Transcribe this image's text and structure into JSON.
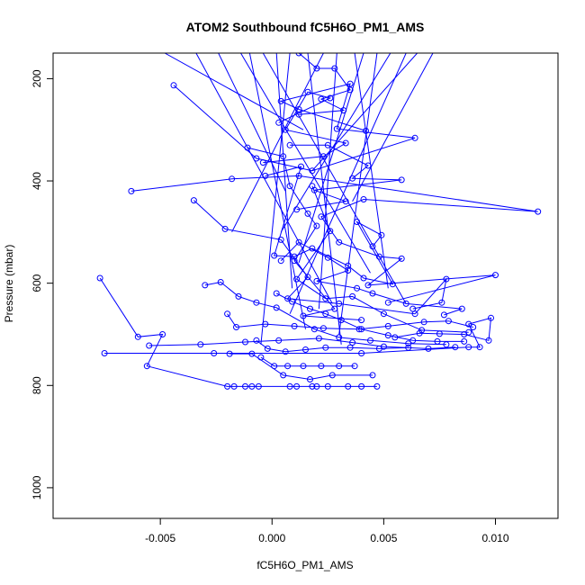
{
  "chart_data": {
    "type": "line",
    "title": "ATOM2 Southbound fC5H6O_PM1_AMS",
    "xlabel": "fC5H6O_PM1_AMS",
    "ylabel": "Pressure (mbar)",
    "xlim": [
      -0.0098,
      0.0128
    ],
    "ylim": [
      1060,
      150
    ],
    "y_reversed": true,
    "x_ticks": [
      -0.005,
      0.0,
      0.005,
      0.01
    ],
    "x_tick_labels": [
      "-0.005",
      "0.000",
      "0.005",
      "0.010"
    ],
    "y_ticks": [
      200,
      400,
      600,
      800,
      1000
    ],
    "y_tick_labels": [
      "200",
      "400",
      "600",
      "800",
      "1000"
    ],
    "color": "#0000ff",
    "marker": "open-circle",
    "series": [
      {
        "values": [
          {
            "x": -0.0077,
            "y": 590
          },
          {
            "x": -0.006,
            "y": 705
          },
          {
            "x": -0.0049,
            "y": 700
          },
          {
            "x": -0.0056,
            "y": 762
          },
          {
            "x": -0.002,
            "y": 802
          },
          {
            "x": -0.0017,
            "y": 802
          },
          {
            "x": -0.0012,
            "y": 802
          },
          {
            "x": -0.0009,
            "y": 802
          },
          {
            "x": -0.0006,
            "y": 802
          },
          {
            "x": 0.0008,
            "y": 802
          },
          {
            "x": 0.0011,
            "y": 802
          },
          {
            "x": 0.0018,
            "y": 802
          },
          {
            "x": 0.002,
            "y": 802
          },
          {
            "x": 0.0025,
            "y": 802
          },
          {
            "x": 0.0034,
            "y": 802
          },
          {
            "x": 0.004,
            "y": 802
          },
          {
            "x": 0.0047,
            "y": 802
          }
        ]
      },
      {
        "values": [
          {
            "x": -0.0075,
            "y": 737
          },
          {
            "x": -0.0026,
            "y": 737
          },
          {
            "x": 0.004,
            "y": 737
          },
          {
            "x": 0.0088,
            "y": 725
          },
          {
            "x": 0.0093,
            "y": 725
          },
          {
            "x": 0.0088,
            "y": 680
          },
          {
            "x": 0.0098,
            "y": 668
          },
          {
            "x": 0.0097,
            "y": 712
          },
          {
            "x": 0.0086,
            "y": 700
          },
          {
            "x": 0.0075,
            "y": 699
          },
          {
            "x": 0.0066,
            "y": 698
          },
          {
            "x": 0.0055,
            "y": 706
          }
        ]
      },
      {
        "values": [
          {
            "x": -0.0063,
            "y": 420
          },
          {
            "x": -0.0018,
            "y": 396
          },
          {
            "x": 0.0012,
            "y": 390
          },
          {
            "x": 0.0119,
            "y": 460
          },
          {
            "x": 0.0041,
            "y": 436
          },
          {
            "x": 0.0022,
            "y": 470
          },
          {
            "x": 0.003,
            "y": 520
          },
          {
            "x": 0.0048,
            "y": 548
          },
          {
            "x": 0.0058,
            "y": 552
          },
          {
            "x": 0.0043,
            "y": 604
          },
          {
            "x": 0.01,
            "y": 584
          },
          {
            "x": 0.0052,
            "y": 638
          }
        ]
      },
      {
        "values": [
          {
            "x": -0.0035,
            "y": 438
          },
          {
            "x": -0.0021,
            "y": 494
          },
          {
            "x": 0.0004,
            "y": 515
          },
          {
            "x": 0.0016,
            "y": 588
          },
          {
            "x": 0.0007,
            "y": 630
          },
          {
            "x": 0.003,
            "y": 640
          },
          {
            "x": 0.0064,
            "y": 660
          },
          {
            "x": 0.0078,
            "y": 592
          },
          {
            "x": 0.0076,
            "y": 638
          },
          {
            "x": 0.0063,
            "y": 650
          }
        ]
      },
      {
        "values": [
          {
            "x": -0.0044,
            "y": 213
          },
          {
            "x": -0.0007,
            "y": 356
          },
          {
            "x": 0.0018,
            "y": 380
          },
          {
            "x": 0.0064,
            "y": 316
          },
          {
            "x": 0.0029,
            "y": 298
          },
          {
            "x": 0.0035,
            "y": 210
          },
          {
            "x": 0.0004,
            "y": 244
          },
          {
            "x": 0.0012,
            "y": 260
          },
          {
            "x": 0.0042,
            "y": 302
          }
        ]
      },
      {
        "values": [
          {
            "x": -0.003,
            "y": 604
          },
          {
            "x": -0.0023,
            "y": 598
          },
          {
            "x": -0.0015,
            "y": 626
          },
          {
            "x": -0.0007,
            "y": 638
          },
          {
            "x": 0.0002,
            "y": 648
          },
          {
            "x": 0.0019,
            "y": 690
          },
          {
            "x": 0.003,
            "y": 706
          },
          {
            "x": 0.0044,
            "y": 712
          },
          {
            "x": 0.0061,
            "y": 718
          },
          {
            "x": 0.0078,
            "y": 720
          }
        ]
      },
      {
        "values": [
          {
            "x": -0.0055,
            "y": 722
          },
          {
            "x": -0.0032,
            "y": 720
          },
          {
            "x": -0.0012,
            "y": 715
          },
          {
            "x": 0.0003,
            "y": 712
          },
          {
            "x": 0.0021,
            "y": 708
          },
          {
            "x": 0.0036,
            "y": 716
          },
          {
            "x": 0.005,
            "y": 724
          },
          {
            "x": 0.007,
            "y": 728
          },
          {
            "x": 0.0082,
            "y": 725
          }
        ]
      },
      {
        "values": [
          {
            "x": -0.002,
            "y": 660
          },
          {
            "x": -0.0016,
            "y": 686
          },
          {
            "x": -0.0003,
            "y": 680
          },
          {
            "x": 0.001,
            "y": 684
          },
          {
            "x": 0.0023,
            "y": 688
          },
          {
            "x": 0.0039,
            "y": 690
          },
          {
            "x": 0.0052,
            "y": 684
          },
          {
            "x": 0.0068,
            "y": 676
          },
          {
            "x": 0.0079,
            "y": 674
          },
          {
            "x": 0.009,
            "y": 686
          }
        ]
      },
      {
        "values": [
          {
            "x": -0.0005,
            "y": 745
          },
          {
            "x": 0.0001,
            "y": 762
          },
          {
            "x": 0.0007,
            "y": 762
          },
          {
            "x": 0.0014,
            "y": 762
          },
          {
            "x": 0.0022,
            "y": 762
          },
          {
            "x": 0.003,
            "y": 762
          },
          {
            "x": 0.0037,
            "y": 762
          }
        ]
      },
      {
        "values": [
          {
            "x": -0.0019,
            "y": 738
          },
          {
            "x": -0.0009,
            "y": 738
          },
          {
            "x": 0.0005,
            "y": 780
          },
          {
            "x": 0.0017,
            "y": 788
          },
          {
            "x": 0.0027,
            "y": 780
          },
          {
            "x": 0.0045,
            "y": 780
          }
        ]
      },
      {
        "values": [
          {
            "x": -0.0011,
            "y": 335
          },
          {
            "x": 0.0005,
            "y": 352
          },
          {
            "x": 0.0008,
            "y": 410
          },
          {
            "x": 0.0016,
            "y": 464
          },
          {
            "x": 0.002,
            "y": 488
          },
          {
            "x": 0.001,
            "y": 556
          },
          {
            "x": 0.0028,
            "y": 650
          },
          {
            "x": 0.0014,
            "y": 664
          },
          {
            "x": 0.004,
            "y": 672
          }
        ]
      },
      {
        "values": [
          {
            "x": -0.0004,
            "y": 364
          },
          {
            "x": 0.0023,
            "y": 352
          },
          {
            "x": 0.0033,
            "y": 326
          },
          {
            "x": 0.0006,
            "y": 300
          },
          {
            "x": 0.0016,
            "y": 226
          },
          {
            "x": 0.0026,
            "y": 238
          },
          {
            "x": 0.0003,
            "y": 286
          }
        ]
      },
      {
        "values": [
          {
            "x": 0.0012,
            "y": 150
          },
          {
            "x": 0.002,
            "y": 180
          },
          {
            "x": 0.0028,
            "y": 180
          },
          {
            "x": 0.0035,
            "y": 222
          },
          {
            "x": 0.0022,
            "y": 240
          },
          {
            "x": 0.0032,
            "y": 262
          },
          {
            "x": 0.0012,
            "y": 270
          }
        ]
      },
      {
        "values": [
          {
            "x": 0.0008,
            "y": 330
          },
          {
            "x": 0.0025,
            "y": 330
          },
          {
            "x": 0.0043,
            "y": 370
          },
          {
            "x": 0.0036,
            "y": 395
          },
          {
            "x": 0.0058,
            "y": 398
          },
          {
            "x": 0.0019,
            "y": 418
          },
          {
            "x": 0.0033,
            "y": 440
          },
          {
            "x": 0.0011,
            "y": 456
          }
        ]
      },
      {
        "values": [
          {
            "x": 0.0004,
            "y": 556
          },
          {
            "x": 0.0012,
            "y": 520
          },
          {
            "x": 0.0025,
            "y": 550
          },
          {
            "x": 0.0034,
            "y": 575
          },
          {
            "x": 0.002,
            "y": 596
          },
          {
            "x": 0.0038,
            "y": 610
          },
          {
            "x": 0.0045,
            "y": 620
          },
          {
            "x": 0.006,
            "y": 640
          },
          {
            "x": 0.0085,
            "y": 650
          },
          {
            "x": 0.0077,
            "y": 662
          }
        ]
      },
      {
        "values": [
          {
            "x": -0.0003,
            "y": 390
          },
          {
            "x": 0.0013,
            "y": 372
          },
          {
            "x": 0.0001,
            "y": 546
          },
          {
            "x": 0.001,
            "y": 548
          },
          {
            "x": 0.0018,
            "y": 532
          },
          {
            "x": 0.0034,
            "y": 566
          },
          {
            "x": 0.0041,
            "y": 590
          },
          {
            "x": 0.0054,
            "y": 602
          },
          {
            "x": 0.0038,
            "y": 480
          },
          {
            "x": 0.0049,
            "y": 506
          },
          {
            "x": 0.0045,
            "y": 528
          }
        ]
      },
      {
        "values": [
          {
            "x": 0.0002,
            "y": 620
          },
          {
            "x": 0.0009,
            "y": 636
          },
          {
            "x": 0.0017,
            "y": 650
          },
          {
            "x": 0.0024,
            "y": 660
          },
          {
            "x": 0.0031,
            "y": 672
          },
          {
            "x": 0.004,
            "y": 690
          },
          {
            "x": 0.0052,
            "y": 702
          },
          {
            "x": 0.0063,
            "y": 712
          },
          {
            "x": 0.0074,
            "y": 714
          },
          {
            "x": 0.0086,
            "y": 714
          }
        ]
      },
      {
        "values": [
          {
            "x": -0.0007,
            "y": 712
          },
          {
            "x": -0.0002,
            "y": 728
          },
          {
            "x": 0.0006,
            "y": 734
          },
          {
            "x": 0.0015,
            "y": 730
          },
          {
            "x": 0.0024,
            "y": 726
          },
          {
            "x": 0.0035,
            "y": 726
          },
          {
            "x": 0.0048,
            "y": 728
          },
          {
            "x": 0.0061,
            "y": 726
          }
        ]
      },
      {
        "values": [
          {
            "x": 0.0018,
            "y": 410
          },
          {
            "x": 0.0026,
            "y": 498
          },
          {
            "x": 0.0011,
            "y": 592
          },
          {
            "x": 0.0024,
            "y": 630
          },
          {
            "x": 0.0036,
            "y": 626
          },
          {
            "x": 0.005,
            "y": 660
          },
          {
            "x": 0.0067,
            "y": 692
          },
          {
            "x": 0.0088,
            "y": 696
          }
        ]
      }
    ],
    "outlier_lines": [
      [
        {
          "x": -0.0048,
          "y": 150
        },
        {
          "x": 0.0014,
          "y": 300
        }
      ],
      [
        {
          "x": -0.0024,
          "y": 150
        },
        {
          "x": 0.0006,
          "y": 420
        }
      ],
      [
        {
          "x": -0.001,
          "y": 150
        },
        {
          "x": 0.0015,
          "y": 690
        }
      ],
      [
        {
          "x": 0.0002,
          "y": 150
        },
        {
          "x": 0.0009,
          "y": 610
        }
      ],
      [
        {
          "x": 0.0016,
          "y": 150
        },
        {
          "x": 0.0031,
          "y": 720
        }
      ],
      [
        {
          "x": 0.0029,
          "y": 150
        },
        {
          "x": 0.0021,
          "y": 650
        }
      ],
      [
        {
          "x": 0.0041,
          "y": 150
        },
        {
          "x": 0.0012,
          "y": 560
        }
      ],
      [
        {
          "x": 0.0053,
          "y": 150
        },
        {
          "x": 0.0004,
          "y": 500
        }
      ],
      [
        {
          "x": 0.0065,
          "y": 150
        },
        {
          "x": 0.0018,
          "y": 380
        }
      ],
      [
        {
          "x": 0.0072,
          "y": 150
        },
        {
          "x": 0.0036,
          "y": 440
        }
      ],
      [
        {
          "x": -0.0034,
          "y": 150
        },
        {
          "x": 0.0027,
          "y": 640
        }
      ],
      [
        {
          "x": -0.0014,
          "y": 150
        },
        {
          "x": 0.0044,
          "y": 580
        }
      ],
      [
        {
          "x": 0.0023,
          "y": 150
        },
        {
          "x": -0.0018,
          "y": 500
        }
      ],
      [
        {
          "x": 0.0037,
          "y": 150
        },
        {
          "x": 0.0052,
          "y": 610
        }
      ],
      [
        {
          "x": 0.006,
          "y": 150
        },
        {
          "x": 0.0008,
          "y": 660
        }
      ],
      [
        {
          "x": -0.0004,
          "y": 150
        },
        {
          "x": 0.006,
          "y": 640
        }
      ],
      [
        {
          "x": 0.0008,
          "y": 150
        },
        {
          "x": -0.0005,
          "y": 720
        }
      ],
      [
        {
          "x": 0.0047,
          "y": 150
        },
        {
          "x": 0.003,
          "y": 700
        }
      ]
    ]
  }
}
